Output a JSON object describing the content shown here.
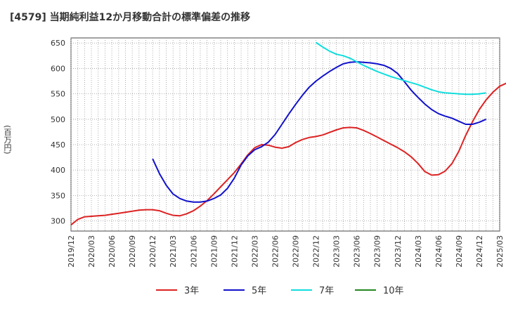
{
  "chart_data": {
    "type": "line",
    "title": "[4579]  当期純利益12か月移動合計の標準偏差の推移",
    "ylabel": "(百万円)",
    "ylim": [
      280,
      660
    ],
    "yticks": [
      300,
      350,
      400,
      450,
      500,
      550,
      600,
      650
    ],
    "ytick_labels": [
      "300",
      "350",
      "400",
      "450",
      "500",
      "550",
      "600",
      "650"
    ],
    "xticks": [
      "2019-12",
      "2020-03",
      "2020-06",
      "2020-09",
      "2020-12",
      "2021-03",
      "2021-06",
      "2021-09",
      "2021-12",
      "2022-03",
      "2022-06",
      "2022-09",
      "2022-12",
      "2023-03",
      "2023-06",
      "2023-09",
      "2023-12",
      "2024-03",
      "2024-06",
      "2024-09",
      "2024-12",
      "2025-03"
    ],
    "xtick_labels": [
      "2019/12",
      "2020/03",
      "2020/06",
      "2020/09",
      "2020/12",
      "2021/03",
      "2021/06",
      "2021/09",
      "2021/12",
      "2022/03",
      "2022/06",
      "2022/09",
      "2022/12",
      "2023/03",
      "2023/06",
      "2023/09",
      "2023/12",
      "2024/03",
      "2024/06",
      "2024/09",
      "2024/12",
      "2025/03"
    ],
    "grid": true,
    "legend_position": "bottom",
    "series": [
      {
        "name": "3年",
        "color": "#dd2222",
        "points": [
          [
            "2019-12",
            292
          ],
          [
            "2020-01",
            303
          ],
          [
            "2020-02",
            308
          ],
          [
            "2020-03",
            309
          ],
          [
            "2020-04",
            310
          ],
          [
            "2020-05",
            311
          ],
          [
            "2020-06",
            313
          ],
          [
            "2020-07",
            315
          ],
          [
            "2020-08",
            317
          ],
          [
            "2020-09",
            319
          ],
          [
            "2020-10",
            321
          ],
          [
            "2020-11",
            322
          ],
          [
            "2020-12",
            322
          ],
          [
            "2021-01",
            320
          ],
          [
            "2021-02",
            315
          ],
          [
            "2021-03",
            311
          ],
          [
            "2021-04",
            310
          ],
          [
            "2021-05",
            314
          ],
          [
            "2021-06",
            320
          ],
          [
            "2021-07",
            329
          ],
          [
            "2021-08",
            340
          ],
          [
            "2021-09",
            353
          ],
          [
            "2021-10",
            367
          ],
          [
            "2021-11",
            381
          ],
          [
            "2021-12",
            395
          ],
          [
            "2022-01",
            412
          ],
          [
            "2022-02",
            430
          ],
          [
            "2022-03",
            444
          ],
          [
            "2022-04",
            450
          ],
          [
            "2022-05",
            449
          ],
          [
            "2022-06",
            445
          ],
          [
            "2022-07",
            443
          ],
          [
            "2022-08",
            446
          ],
          [
            "2022-09",
            454
          ],
          [
            "2022-10",
            460
          ],
          [
            "2022-11",
            464
          ],
          [
            "2022-12",
            466
          ],
          [
            "2023-01",
            469
          ],
          [
            "2023-02",
            474
          ],
          [
            "2023-03",
            479
          ],
          [
            "2023-04",
            483
          ],
          [
            "2023-05",
            484
          ],
          [
            "2023-06",
            483
          ],
          [
            "2023-07",
            478
          ],
          [
            "2023-08",
            472
          ],
          [
            "2023-09",
            465
          ],
          [
            "2023-10",
            458
          ],
          [
            "2023-11",
            451
          ],
          [
            "2023-12",
            444
          ],
          [
            "2024-01",
            436
          ],
          [
            "2024-02",
            426
          ],
          [
            "2024-03",
            413
          ],
          [
            "2024-04",
            397
          ],
          [
            "2024-05",
            390
          ],
          [
            "2024-06",
            391
          ],
          [
            "2024-07",
            398
          ],
          [
            "2024-08",
            413
          ],
          [
            "2024-09",
            437
          ],
          [
            "2024-10",
            468
          ],
          [
            "2024-11",
            495
          ],
          [
            "2024-12",
            519
          ],
          [
            "2025-01",
            538
          ],
          [
            "2025-02",
            553
          ],
          [
            "2025-03",
            565
          ],
          [
            "2025-04",
            571
          ]
        ]
      },
      {
        "name": "5年",
        "color": "#1111cc",
        "points": [
          [
            "2020-12",
            422
          ],
          [
            "2021-01",
            393
          ],
          [
            "2021-02",
            370
          ],
          [
            "2021-03",
            353
          ],
          [
            "2021-04",
            344
          ],
          [
            "2021-05",
            339
          ],
          [
            "2021-06",
            337
          ],
          [
            "2021-07",
            337
          ],
          [
            "2021-08",
            339
          ],
          [
            "2021-09",
            344
          ],
          [
            "2021-10",
            351
          ],
          [
            "2021-11",
            364
          ],
          [
            "2021-12",
            384
          ],
          [
            "2022-01",
            410
          ],
          [
            "2022-02",
            428
          ],
          [
            "2022-03",
            440
          ],
          [
            "2022-04",
            446
          ],
          [
            "2022-05",
            455
          ],
          [
            "2022-06",
            470
          ],
          [
            "2022-07",
            490
          ],
          [
            "2022-08",
            510
          ],
          [
            "2022-09",
            529
          ],
          [
            "2022-10",
            547
          ],
          [
            "2022-11",
            563
          ],
          [
            "2022-12",
            575
          ],
          [
            "2023-01",
            585
          ],
          [
            "2023-02",
            594
          ],
          [
            "2023-03",
            602
          ],
          [
            "2023-04",
            609
          ],
          [
            "2023-05",
            612
          ],
          [
            "2023-06",
            613
          ],
          [
            "2023-07",
            612
          ],
          [
            "2023-08",
            611
          ],
          [
            "2023-09",
            609
          ],
          [
            "2023-10",
            606
          ],
          [
            "2023-11",
            600
          ],
          [
            "2023-12",
            590
          ],
          [
            "2024-01",
            574
          ],
          [
            "2024-02",
            557
          ],
          [
            "2024-03",
            543
          ],
          [
            "2024-04",
            530
          ],
          [
            "2024-05",
            519
          ],
          [
            "2024-06",
            511
          ],
          [
            "2024-07",
            506
          ],
          [
            "2024-08",
            502
          ],
          [
            "2024-09",
            496
          ],
          [
            "2024-10",
            490
          ],
          [
            "2024-11",
            490
          ],
          [
            "2024-12",
            494
          ],
          [
            "2025-01",
            500
          ]
        ]
      },
      {
        "name": "7年",
        "color": "#11dddd",
        "points": [
          [
            "2022-12",
            651
          ],
          [
            "2023-01",
            642
          ],
          [
            "2023-02",
            634
          ],
          [
            "2023-03",
            628
          ],
          [
            "2023-04",
            625
          ],
          [
            "2023-05",
            620
          ],
          [
            "2023-06",
            613
          ],
          [
            "2023-07",
            606
          ],
          [
            "2023-08",
            600
          ],
          [
            "2023-09",
            594
          ],
          [
            "2023-10",
            589
          ],
          [
            "2023-11",
            584
          ],
          [
            "2023-12",
            580
          ],
          [
            "2024-01",
            576
          ],
          [
            "2024-02",
            572
          ],
          [
            "2024-03",
            568
          ],
          [
            "2024-04",
            563
          ],
          [
            "2024-05",
            558
          ],
          [
            "2024-06",
            554
          ],
          [
            "2024-07",
            552
          ],
          [
            "2024-08",
            551
          ],
          [
            "2024-09",
            550
          ],
          [
            "2024-10",
            549
          ],
          [
            "2024-11",
            549
          ],
          [
            "2024-12",
            550
          ],
          [
            "2025-01",
            552
          ]
        ]
      },
      {
        "name": "10年",
        "color": "#228822",
        "points": []
      }
    ]
  }
}
